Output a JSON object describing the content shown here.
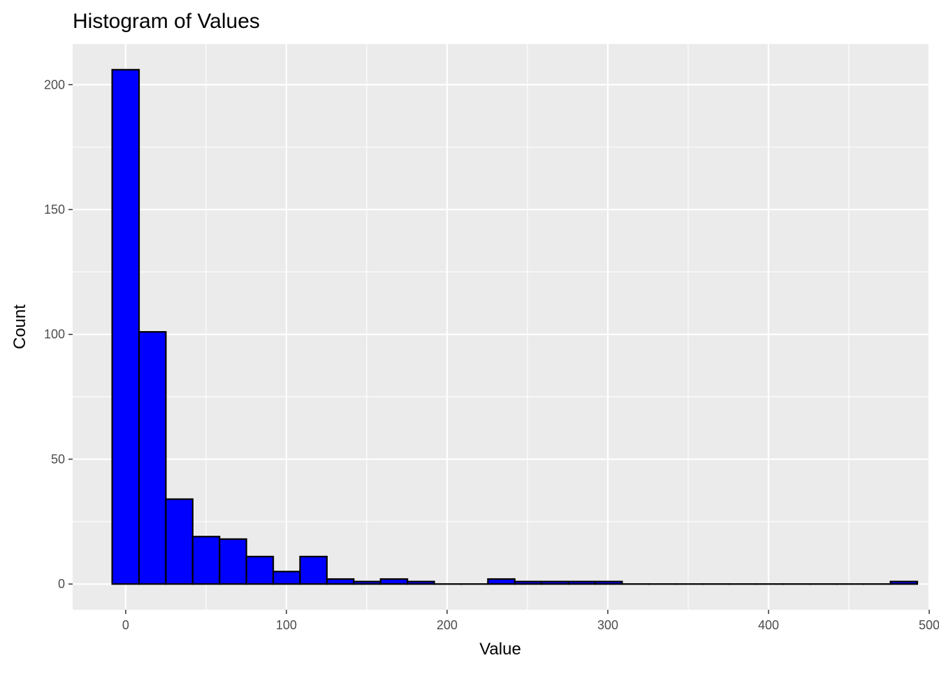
{
  "chart_data": {
    "type": "bar",
    "title": "Histogram of Values",
    "xlabel": "Value",
    "ylabel": "Count",
    "xlim": [
      -33,
      500
    ],
    "ylim": [
      -10.3,
      216.3
    ],
    "x_ticks": [
      0,
      100,
      200,
      300,
      400,
      500
    ],
    "y_ticks": [
      0,
      50,
      100,
      150,
      200
    ],
    "grid": true,
    "legend": "none",
    "bin_width": 16.7,
    "bins": [
      {
        "start": -8.4,
        "end": 8.3,
        "count": 206
      },
      {
        "start": 8.3,
        "end": 25.0,
        "count": 101
      },
      {
        "start": 25.0,
        "end": 41.7,
        "count": 34
      },
      {
        "start": 41.7,
        "end": 58.4,
        "count": 19
      },
      {
        "start": 58.4,
        "end": 75.1,
        "count": 18
      },
      {
        "start": 75.1,
        "end": 91.8,
        "count": 11
      },
      {
        "start": 91.8,
        "end": 108.5,
        "count": 5
      },
      {
        "start": 108.5,
        "end": 125.2,
        "count": 11
      },
      {
        "start": 125.2,
        "end": 141.9,
        "count": 2
      },
      {
        "start": 141.9,
        "end": 158.6,
        "count": 1
      },
      {
        "start": 158.6,
        "end": 175.3,
        "count": 2
      },
      {
        "start": 175.3,
        "end": 192.0,
        "count": 1
      },
      {
        "start": 192.0,
        "end": 208.7,
        "count": 0
      },
      {
        "start": 208.7,
        "end": 225.4,
        "count": 0
      },
      {
        "start": 225.4,
        "end": 242.1,
        "count": 2
      },
      {
        "start": 242.1,
        "end": 258.8,
        "count": 1
      },
      {
        "start": 258.8,
        "end": 275.5,
        "count": 1
      },
      {
        "start": 275.5,
        "end": 292.2,
        "count": 1
      },
      {
        "start": 292.2,
        "end": 308.9,
        "count": 1
      },
      {
        "start": 308.9,
        "end": 325.6,
        "count": 0
      },
      {
        "start": 325.6,
        "end": 342.3,
        "count": 0
      },
      {
        "start": 342.3,
        "end": 359.0,
        "count": 0
      },
      {
        "start": 359.0,
        "end": 375.7,
        "count": 0
      },
      {
        "start": 375.7,
        "end": 392.4,
        "count": 0
      },
      {
        "start": 392.4,
        "end": 409.1,
        "count": 0
      },
      {
        "start": 409.1,
        "end": 425.8,
        "count": 0
      },
      {
        "start": 425.8,
        "end": 442.5,
        "count": 0
      },
      {
        "start": 442.5,
        "end": 459.2,
        "count": 0
      },
      {
        "start": 459.2,
        "end": 475.9,
        "count": 0
      },
      {
        "start": 475.9,
        "end": 492.6,
        "count": 1
      }
    ],
    "colors": {
      "fill": "#0000ff",
      "outline": "#000000",
      "panel": "#ebebeb",
      "grid": "#ffffff"
    }
  }
}
